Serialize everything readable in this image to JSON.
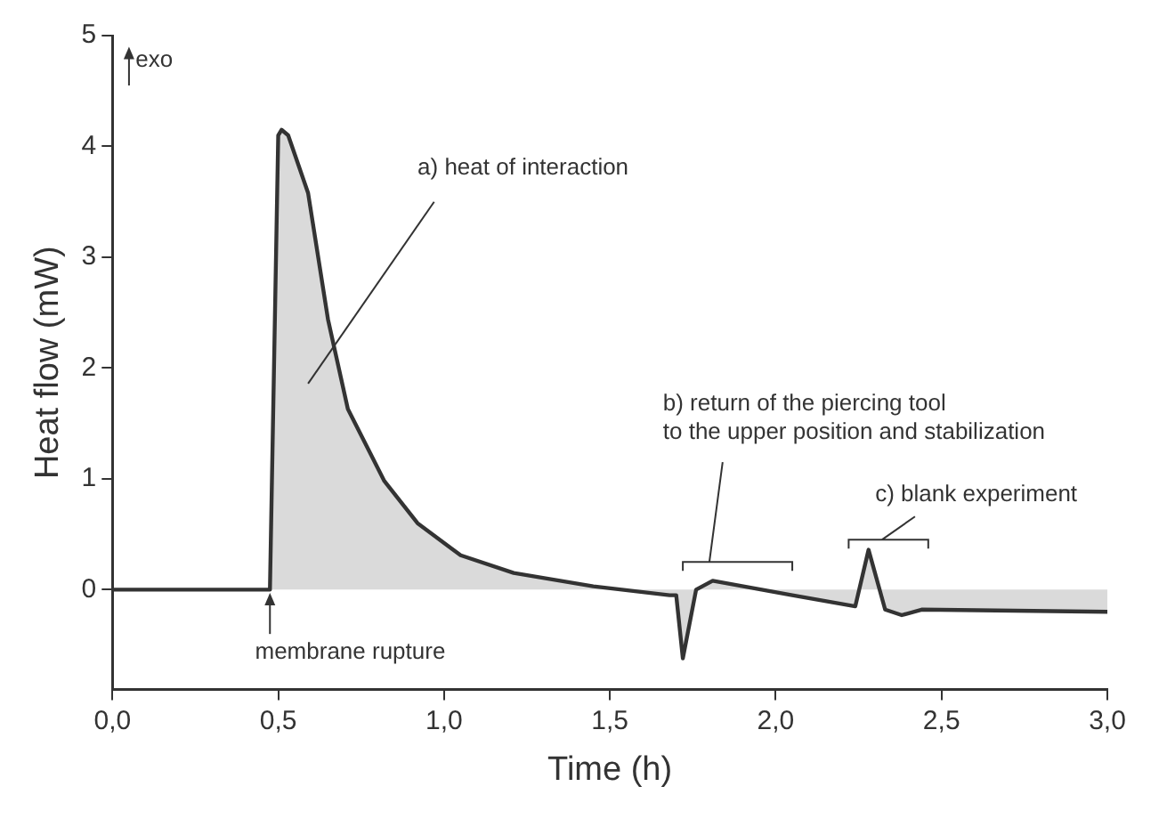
{
  "chart_data": {
    "type": "area",
    "xlabel": "Time (h)",
    "ylabel": "Heat flow (mW)",
    "x": [
      0,
      0.47,
      0.475,
      0.5,
      0.51,
      0.53,
      0.59,
      0.65,
      0.71,
      0.82,
      0.92,
      1.05,
      1.21,
      1.45,
      1.68,
      1.7,
      1.72,
      1.76,
      1.81,
      2.05,
      2.24,
      2.28,
      2.33,
      2.38,
      2.44,
      3.0
    ],
    "series": [
      {
        "color": "#333333",
        "values": [
          0,
          0,
          0,
          4.1,
          4.15,
          4.1,
          3.58,
          2.44,
          1.63,
          0.98,
          0.6,
          0.31,
          0.15,
          0.03,
          -0.05,
          -0.05,
          -0.62,
          0,
          0.08,
          -0.05,
          -0.15,
          0.36,
          -0.18,
          -0.23,
          -0.18,
          -0.2
        ]
      }
    ],
    "xlim": [
      0,
      3
    ],
    "ylim": [
      -0.9,
      5
    ],
    "xticks": [
      {
        "value": 0,
        "label": "0,0"
      },
      {
        "value": 0.5,
        "label": "0,5"
      },
      {
        "value": 1,
        "label": "1,0"
      },
      {
        "value": 1.5,
        "label": "1,5"
      },
      {
        "value": 2,
        "label": "2,0"
      },
      {
        "value": 2.5,
        "label": "2,5"
      },
      {
        "value": 3,
        "label": "3,0"
      }
    ],
    "yticks": [
      0,
      1,
      2,
      3,
      4,
      5
    ],
    "annotations": [
      "exo",
      "a) heat of interaction",
      "membrane rupture",
      "b) return of the piercing tool\nto the upper position and stabilization",
      "c) blank experiment"
    ]
  }
}
